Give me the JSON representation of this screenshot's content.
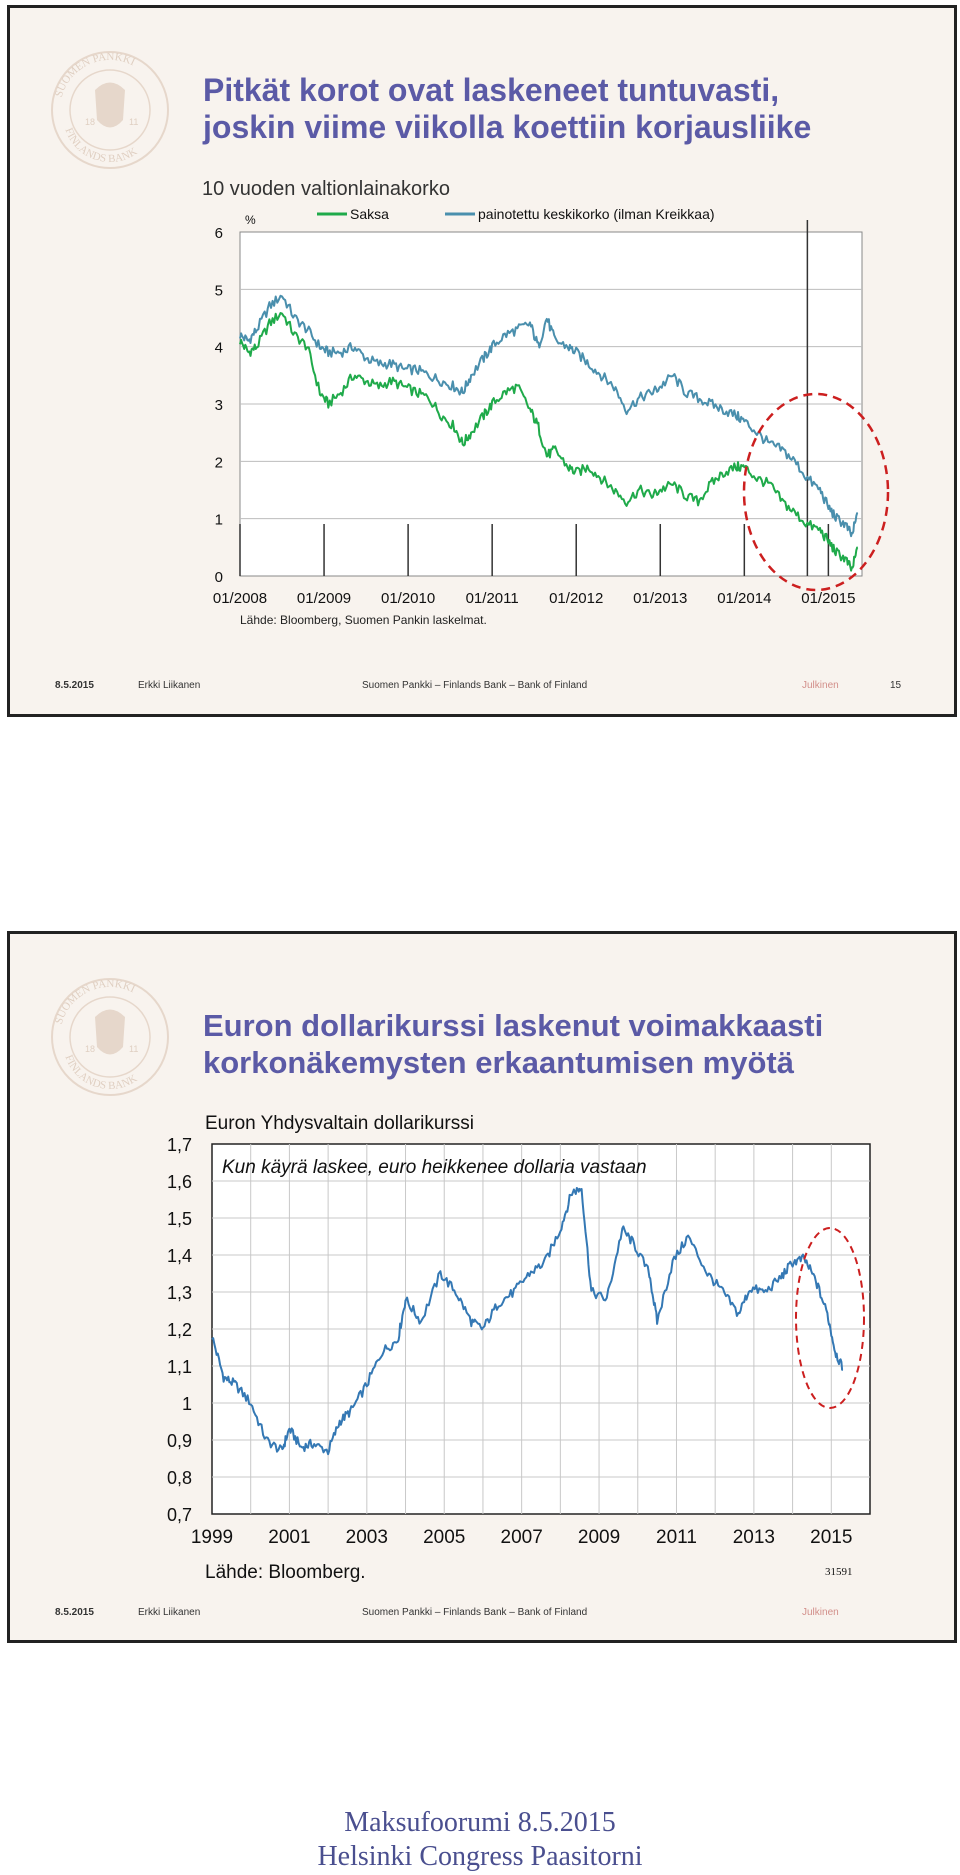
{
  "slide1": {
    "title_line1": "Pitkät korot ovat laskeneet tuntuvasti,",
    "title_line2": "joskin viime viikolla koettiin korjausliike",
    "footer": {
      "date": "8.5.2015",
      "author": "Erkki Liikanen",
      "org": "Suomen Pankki – Finlands Bank – Bank of Finland",
      "classification": "Julkinen",
      "page": "15"
    }
  },
  "slide2": {
    "title_line1": "Euron dollarikurssi laskenut voimakkaasti",
    "title_line2": "korkonäkemysten erkaantumisen myötä",
    "footer": {
      "date": "8.5.2015",
      "author": "Erkki Liikanen",
      "org": "Suomen Pankki – Finlands Bank – Bank of Finland",
      "classification": "Julkinen"
    }
  },
  "logo": {
    "text_top": "SUOMEN PANKKI",
    "text_bottom": "FINLANDS BANK",
    "text_mid": "EUROSYSTEEMI",
    "year_left": "18",
    "year_right": "11"
  },
  "chart_data": [
    {
      "type": "line",
      "title": "10 vuoden valtionlainakorko",
      "ylabel": "%",
      "source": "Lähde: Bloomberg, Suomen Pankin laskelmat.",
      "ylim": [
        0,
        6
      ],
      "yticks": [
        "0",
        "1",
        "2",
        "3",
        "4",
        "5",
        "6"
      ],
      "xticks": [
        "01/2008",
        "01/2009",
        "01/2010",
        "01/2011",
        "01/2012",
        "01/2013",
        "01/2014",
        "01/2015"
      ],
      "xlim": [
        2008.0,
        2015.4
      ],
      "legend_position": "top",
      "series": [
        {
          "name": "Saksa",
          "color": "#1faa4a",
          "x": [
            2008.0,
            2008.1,
            2008.2,
            2008.35,
            2008.5,
            2008.65,
            2008.8,
            2008.95,
            2009.05,
            2009.2,
            2009.35,
            2009.5,
            2009.65,
            2009.8,
            2009.95,
            2010.1,
            2010.25,
            2010.4,
            2010.55,
            2010.65,
            2010.75,
            2010.9,
            2011.0,
            2011.15,
            2011.3,
            2011.45,
            2011.55,
            2011.65,
            2011.75,
            2011.9,
            2012.0,
            2012.15,
            2012.3,
            2012.45,
            2012.6,
            2012.75,
            2012.9,
            2013.0,
            2013.15,
            2013.3,
            2013.45,
            2013.6,
            2013.75,
            2013.9,
            2014.0,
            2014.15,
            2014.3,
            2014.45,
            2014.6,
            2014.75,
            2014.9,
            2015.0,
            2015.1,
            2015.2,
            2015.28,
            2015.35
          ],
          "y": [
            4.1,
            3.9,
            4.0,
            4.4,
            4.6,
            4.2,
            4.0,
            3.2,
            3.0,
            3.2,
            3.5,
            3.4,
            3.3,
            3.4,
            3.3,
            3.2,
            3.1,
            2.8,
            2.6,
            2.3,
            2.5,
            2.8,
            3.0,
            3.2,
            3.3,
            2.9,
            2.6,
            2.1,
            2.2,
            1.9,
            1.8,
            1.9,
            1.7,
            1.5,
            1.3,
            1.5,
            1.4,
            1.5,
            1.6,
            1.4,
            1.3,
            1.6,
            1.8,
            1.9,
            1.9,
            1.7,
            1.6,
            1.3,
            1.1,
            0.9,
            0.8,
            0.6,
            0.4,
            0.3,
            0.1,
            0.5
          ]
        },
        {
          "name": "painotettu keskikorko (ilman Kreikkaa)",
          "color": "#4a8fad",
          "x": [
            2008.0,
            2008.1,
            2008.2,
            2008.35,
            2008.5,
            2008.65,
            2008.8,
            2008.95,
            2009.05,
            2009.2,
            2009.35,
            2009.5,
            2009.65,
            2009.8,
            2009.95,
            2010.1,
            2010.25,
            2010.4,
            2010.55,
            2010.65,
            2010.75,
            2010.9,
            2011.0,
            2011.15,
            2011.3,
            2011.45,
            2011.55,
            2011.65,
            2011.75,
            2011.9,
            2012.0,
            2012.15,
            2012.3,
            2012.45,
            2012.6,
            2012.75,
            2012.9,
            2013.0,
            2013.15,
            2013.3,
            2013.45,
            2013.6,
            2013.75,
            2013.9,
            2014.0,
            2014.15,
            2014.3,
            2014.45,
            2014.6,
            2014.75,
            2014.9,
            2015.0,
            2015.1,
            2015.2,
            2015.28,
            2015.35
          ],
          "y": [
            4.2,
            4.1,
            4.3,
            4.7,
            4.9,
            4.5,
            4.3,
            4.0,
            3.9,
            3.9,
            4.0,
            3.8,
            3.7,
            3.7,
            3.6,
            3.6,
            3.5,
            3.4,
            3.3,
            3.2,
            3.5,
            3.8,
            4.0,
            4.2,
            4.3,
            4.4,
            4.0,
            4.5,
            4.1,
            4.0,
            3.9,
            3.7,
            3.5,
            3.3,
            2.9,
            3.1,
            3.2,
            3.3,
            3.5,
            3.2,
            3.1,
            3.0,
            2.9,
            2.8,
            2.7,
            2.5,
            2.3,
            2.2,
            2.0,
            1.7,
            1.5,
            1.2,
            1.0,
            0.9,
            0.7,
            1.1
          ]
        }
      ],
      "vertical_marker_x": 2015.0,
      "highlight": "dashed red ellipse around 2014–2015"
    },
    {
      "type": "line",
      "title": "Euron Yhdysvaltain dollarikurssi",
      "annotation": "Kun käyrä laskee, euro heikkenee dollaria vastaan",
      "source": "Lähde: Bloomberg.",
      "code": "31591",
      "ylim": [
        0.7,
        1.7
      ],
      "yticks": [
        "0,7",
        "0,8",
        "0,9",
        "1",
        "1,1",
        "1,2",
        "1,3",
        "1,4",
        "1,5",
        "1,6",
        "1,7"
      ],
      "xticks": [
        "1999",
        "2001",
        "2003",
        "2005",
        "2007",
        "2009",
        "2011",
        "2013",
        "2015"
      ],
      "xlim": [
        1999.0,
        2016.0
      ],
      "grid": true,
      "series": [
        {
          "name": "",
          "color": "#3478b4",
          "x": [
            1999.0,
            1999.3,
            1999.6,
            2000.0,
            2000.4,
            2000.8,
            2001.0,
            2001.3,
            2001.6,
            2002.0,
            2002.3,
            2002.6,
            2003.0,
            2003.4,
            2003.8,
            2004.0,
            2004.4,
            2004.9,
            2005.3,
            2005.7,
            2006.0,
            2006.4,
            2006.8,
            2007.2,
            2007.6,
            2008.0,
            2008.3,
            2008.55,
            2008.8,
            2009.2,
            2009.6,
            2009.9,
            2010.3,
            2010.5,
            2010.9,
            2011.3,
            2011.8,
            2012.2,
            2012.6,
            2012.9,
            2013.3,
            2013.7,
            2014.0,
            2014.3,
            2014.6,
            2014.9,
            2015.1,
            2015.3
          ],
          "y": [
            1.18,
            1.07,
            1.05,
            1.0,
            0.9,
            0.87,
            0.93,
            0.88,
            0.89,
            0.87,
            0.95,
            0.98,
            1.05,
            1.14,
            1.17,
            1.28,
            1.22,
            1.35,
            1.3,
            1.22,
            1.2,
            1.27,
            1.3,
            1.35,
            1.38,
            1.47,
            1.57,
            1.58,
            1.3,
            1.28,
            1.47,
            1.43,
            1.35,
            1.22,
            1.38,
            1.45,
            1.35,
            1.3,
            1.24,
            1.31,
            1.3,
            1.34,
            1.38,
            1.39,
            1.33,
            1.24,
            1.14,
            1.09
          ]
        }
      ],
      "highlight": "dashed red ellipse around 2014–2015"
    }
  ],
  "bottom": {
    "line1": "Maksufoorumi 8.5.2015",
    "line2": "Helsinki Congress Paasitorni"
  }
}
